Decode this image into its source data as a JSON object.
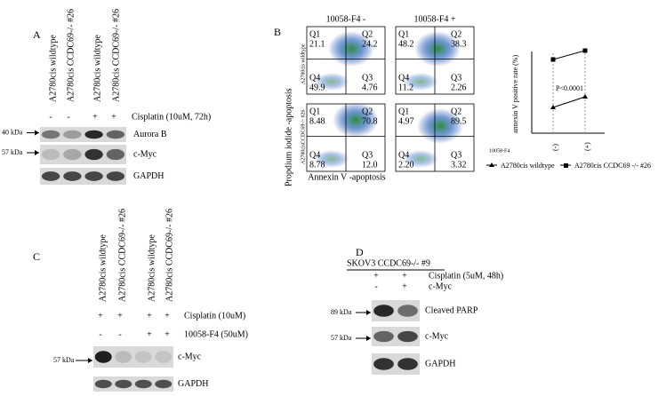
{
  "panel_a": {
    "label": "A",
    "columns": [
      "A2780cis wildtype",
      "A2780cis CCDC69-/- #26",
      "A2780cis wildtype",
      "A2780cis CCDC69-/- #26"
    ],
    "signs": [
      "-",
      "-",
      "+",
      "+"
    ],
    "treatment": "Cisplatin (10uM, 72h)",
    "blots": [
      {
        "name": "Aurora B",
        "marker": "40 kDa"
      },
      {
        "name": "c-Myc",
        "marker": "57 kDa"
      },
      {
        "name": "GAPDH"
      }
    ]
  },
  "panel_b": {
    "label": "B",
    "conditions": [
      "10058-F4 -",
      "10058-F4 +"
    ],
    "rows": [
      "A2780cis wildtype",
      "A2780cisCCDC69-/- #26"
    ],
    "y_label": "Propdium iodide -apoptosis",
    "x_label": "Annexin V -apoptosis",
    "plots": [
      [
        {
          "name": "Q1",
          "value": "21.1"
        },
        {
          "name": "Q2",
          "value": "24.2"
        },
        {
          "name": "Q4",
          "value": "49.9"
        },
        {
          "name": "Q3",
          "value": "4.76"
        }
      ],
      [
        {
          "name": "Q1",
          "value": "48.2"
        },
        {
          "name": "Q2",
          "value": "38.3"
        },
        {
          "name": "Q4",
          "value": "11.2"
        },
        {
          "name": "Q3",
          "value": "2.26"
        }
      ],
      [
        {
          "name": "Q1",
          "value": "8.48"
        },
        {
          "name": "Q2",
          "value": "70.8"
        },
        {
          "name": "Q4",
          "value": "8.78"
        },
        {
          "name": "Q3",
          "value": "12.0"
        }
      ],
      [
        {
          "name": "Q1",
          "value": "4.97"
        },
        {
          "name": "Q2",
          "value": "89.5"
        },
        {
          "name": "Q4",
          "value": "2.20"
        },
        {
          "name": "Q3",
          "value": "3.32"
        }
      ]
    ]
  },
  "chart_data": {
    "type": "line",
    "y_label": "annexin V positive rate (%)",
    "x_label": "10058-F4",
    "categories": [
      "(-)",
      "(+)"
    ],
    "ylim": [
      0,
      100
    ],
    "annotation": "P<0.0001",
    "series": [
      {
        "name": "A2780cis wildtype",
        "color": "#000000",
        "marker": "triangle",
        "values": [
          29,
          41
        ]
      },
      {
        "name": "A2780cis CCDC69 -/- #26",
        "color": "#000000",
        "marker": "square",
        "values": [
          83,
          93
        ]
      }
    ]
  },
  "panel_c": {
    "label": "C",
    "columns": [
      "A2780cis wildtype",
      "A2780cis CCDC69-/- #26",
      "A2780cis wildtype",
      "A2780cis CCDC69-/- #26"
    ],
    "treatments": [
      {
        "signs": [
          "+",
          "+",
          "+",
          "+"
        ],
        "label": "Cisplatin (10uM)"
      },
      {
        "signs": [
          "-",
          "-",
          "+",
          "+"
        ],
        "label": "10058-F4 (50uM)"
      }
    ],
    "blots": [
      {
        "name": "c-Myc",
        "marker": "57 kDa"
      },
      {
        "name": "GAPDH"
      }
    ]
  },
  "panel_d": {
    "label": "D",
    "title": "SKOV3 CCDC69-/- #9",
    "treatments": [
      {
        "signs": [
          "+",
          "+"
        ],
        "label": "Cisplatin (5uM, 48h)"
      },
      {
        "signs": [
          "-",
          "+"
        ],
        "label": "c-Myc"
      }
    ],
    "blots": [
      {
        "name": "Cleaved PARP",
        "marker": "89 kDa"
      },
      {
        "name": "c-Myc",
        "marker": "57 kDa"
      },
      {
        "name": "GAPDH"
      }
    ]
  }
}
